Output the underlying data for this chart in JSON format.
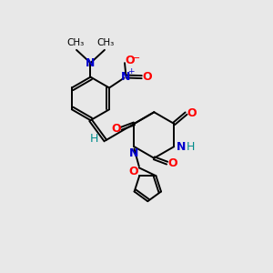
{
  "background_color": "#e8e8e8",
  "bond_color": "#000000",
  "atom_colors": {
    "N": "#0000cd",
    "O": "#ff0000",
    "H": "#008b8b",
    "C": "#000000"
  },
  "figsize": [
    3.0,
    3.0
  ],
  "dpi": 100
}
